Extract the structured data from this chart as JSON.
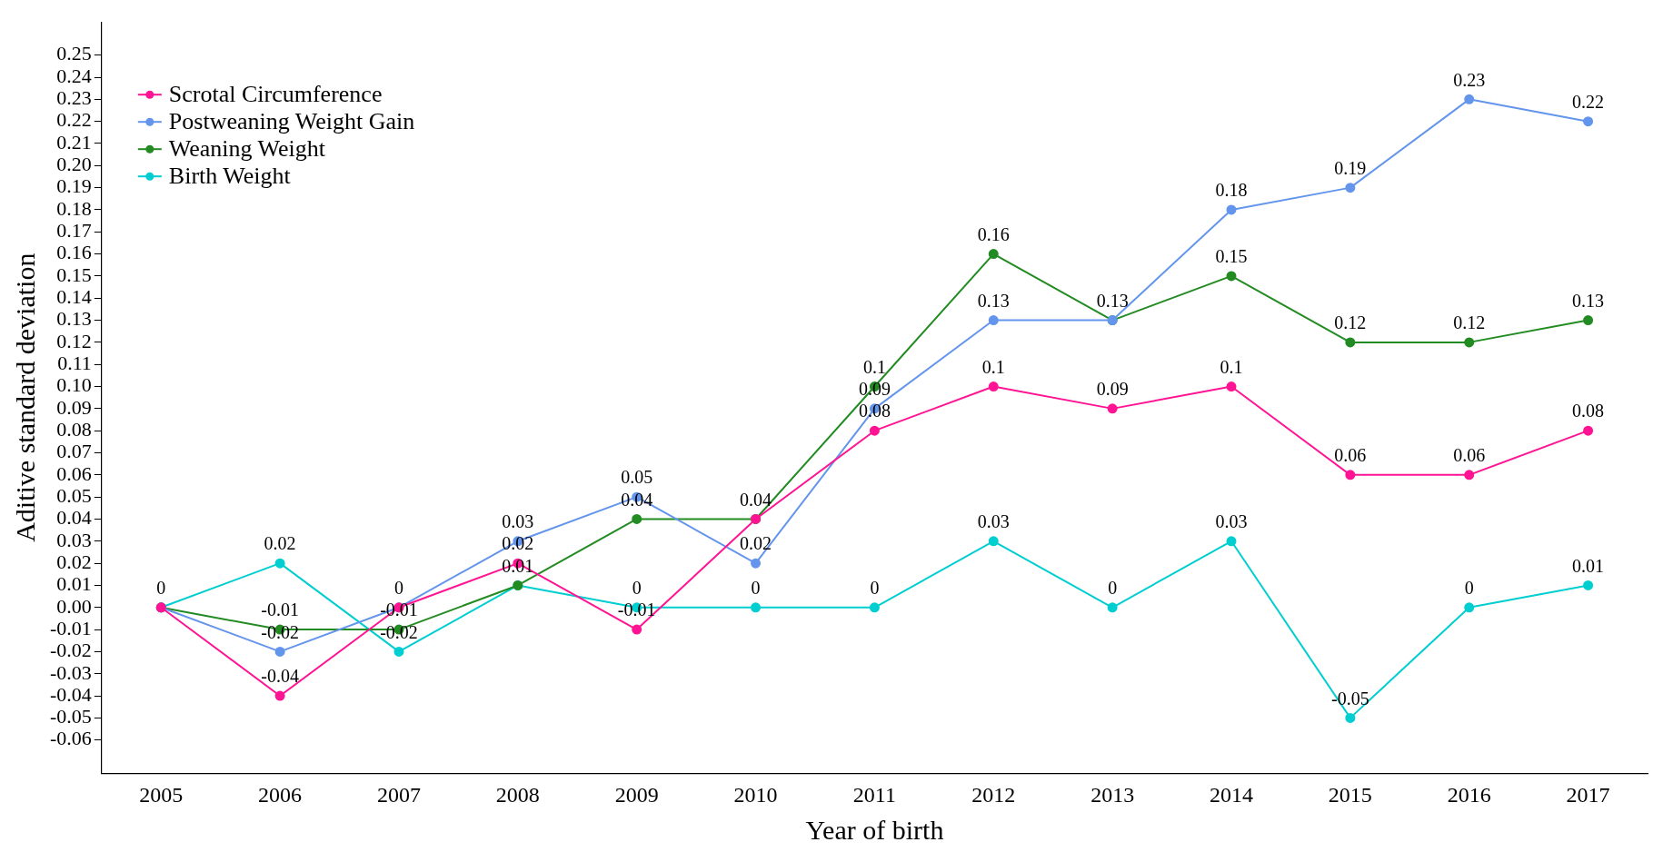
{
  "chart_data": {
    "type": "line",
    "xlabel": "Year of birth",
    "ylabel": "Aditive standard deviation",
    "categories": [
      "2005",
      "2006",
      "2007",
      "2008",
      "2009",
      "2010",
      "2011",
      "2012",
      "2013",
      "2014",
      "2015",
      "2016",
      "2017"
    ],
    "series": [
      {
        "name": "Scrotal Circumference",
        "color": "#ff1493",
        "values": [
          0,
          -0.04,
          0,
          0.02,
          -0.01,
          0.04,
          0.08,
          0.1,
          0.09,
          0.1,
          0.06,
          0.06,
          0.08
        ],
        "value_labels": [
          "0",
          "-0.04",
          "0",
          "0.02",
          "-0.01",
          "0.04",
          "0.08",
          "0.1",
          "0.09",
          "0.1",
          "0.06",
          "0.06",
          "0.08"
        ]
      },
      {
        "name": "Postweaning Weight Gain",
        "color": "#6495ed",
        "values": [
          0,
          -0.02,
          0,
          0.03,
          0.05,
          0.02,
          0.09,
          0.13,
          0.13,
          0.18,
          0.19,
          0.23,
          0.22
        ],
        "value_labels": [
          null,
          "-0.02",
          null,
          "0.03",
          "0.05",
          "0.02",
          "0.09",
          "0.13",
          "0.13",
          "0.18",
          "0.19",
          "0.23",
          "0.22"
        ]
      },
      {
        "name": "Weaning Weight",
        "color": "#228b22",
        "values": [
          0,
          -0.01,
          -0.01,
          0.01,
          0.04,
          0.04,
          0.1,
          0.16,
          0.13,
          0.15,
          0.12,
          0.12,
          0.13
        ],
        "value_labels": [
          null,
          "-0.01",
          "-0.01",
          "0.01",
          "0.04",
          null,
          "0.1",
          "0.16",
          null,
          "0.15",
          "0.12",
          "0.12",
          "0.13"
        ]
      },
      {
        "name": "Birth Weight",
        "color": "#00ced1",
        "values": [
          0,
          0.02,
          -0.02,
          0.01,
          0,
          0,
          0,
          0.03,
          0,
          0.03,
          -0.05,
          0,
          0.01
        ],
        "value_labels": [
          null,
          "0.02",
          "-0.02",
          null,
          "0",
          "0",
          "0",
          "0.03",
          "0",
          "0.03",
          "-0.05",
          "0",
          "0.01"
        ]
      }
    ],
    "ylim": [
      -0.075,
      0.265
    ],
    "yticks": [
      -0.06,
      -0.05,
      -0.04,
      -0.03,
      -0.02,
      -0.01,
      {
        "value": 0,
        "label": "0.00"
      },
      0.01,
      0.02,
      0.03,
      0.04,
      0.05,
      0.06,
      0.07,
      0.08,
      0.09,
      {
        "value": 0.1,
        "label": "0.10"
      },
      0.11,
      0.12,
      0.13,
      0.14,
      0.15,
      0.16,
      0.17,
      0.18,
      0.19,
      {
        "value": 0.2,
        "label": "0.20"
      },
      0.21,
      0.22,
      0.23,
      0.24,
      0.25
    ],
    "grid": false,
    "legend": "top left",
    "marker": "circle",
    "line_style": "solid"
  }
}
